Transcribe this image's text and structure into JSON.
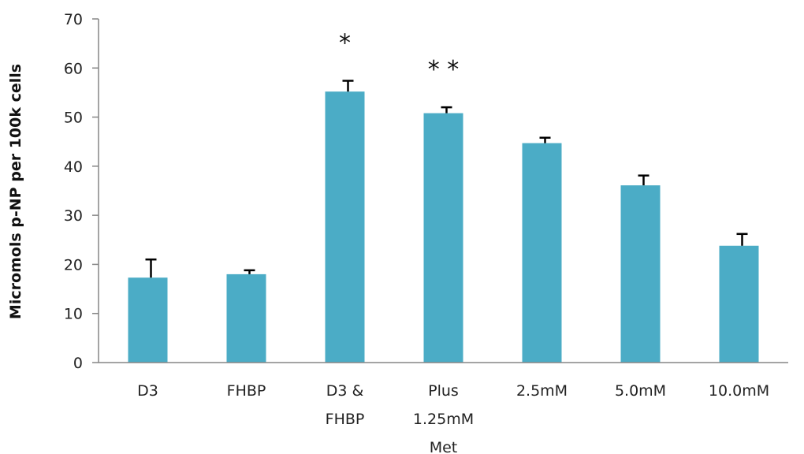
{
  "chart_data": {
    "type": "bar",
    "categories": [
      [
        "D3"
      ],
      [
        "FHBP"
      ],
      [
        "D3 &",
        "FHBP"
      ],
      [
        "Plus",
        "1.25mM",
        "Met"
      ],
      [
        "2.5mM"
      ],
      [
        "5.0mM"
      ],
      [
        "10.0mM"
      ]
    ],
    "values": [
      17.3,
      18.0,
      55.2,
      50.8,
      44.7,
      36.1,
      23.8
    ],
    "errors": [
      3.7,
      0.8,
      2.2,
      1.2,
      1.1,
      2.0,
      2.4
    ],
    "annotations": [
      "",
      "",
      "*",
      "**",
      "",
      "",
      ""
    ],
    "ylabel": "Micromols p-NP per 100k cells",
    "ylim": [
      0,
      70
    ],
    "yticks": [
      0,
      10,
      20,
      30,
      40,
      50,
      60,
      70
    ],
    "bar_color": "#4bacc6",
    "grid": false,
    "legend": "none"
  }
}
